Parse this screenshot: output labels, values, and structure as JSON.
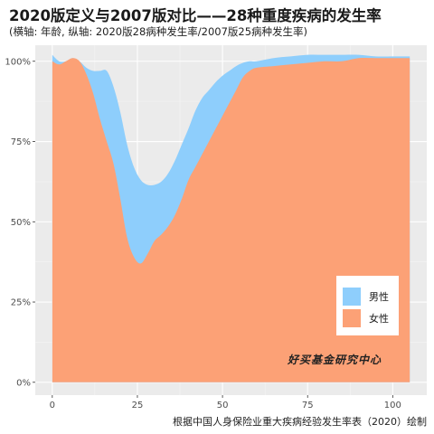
{
  "chart_data": {
    "type": "area",
    "title": "2020版定义与2007版对比——28种重度疾病的发生率",
    "subtitle": "(横轴: 年龄, 纵轴: 2020版28病种发生率/2007版25病种发生率)",
    "caption": "根据中国人身保险业重大疾病经验发生率表（2020）绘制",
    "watermark": "好买基金研究中心",
    "xlabel": "",
    "ylabel": "",
    "xlim": [
      -5,
      110
    ],
    "ylim": [
      -0.04,
      1.05
    ],
    "x_ticks": [
      0,
      25,
      50,
      75,
      100
    ],
    "x_tick_labels": [
      "0",
      "25",
      "50",
      "75",
      "100"
    ],
    "y_ticks": [
      0,
      0.25,
      0.5,
      0.75,
      1.0
    ],
    "y_tick_labels": [
      "0%",
      "25%",
      "50%",
      "75%",
      "100%"
    ],
    "grid": true,
    "legend_position": "bottom-right",
    "series": [
      {
        "name": "男性",
        "color": "#8ecefc",
        "x": [
          0,
          2,
          4,
          6,
          8,
          10,
          12,
          14,
          16,
          18,
          20,
          22,
          24,
          26,
          28,
          30,
          32,
          34,
          36,
          38,
          40,
          42,
          44,
          46,
          48,
          50,
          52,
          54,
          56,
          58,
          60,
          65,
          70,
          75,
          80,
          85,
          90,
          95,
          100,
          105
        ],
        "values": [
          1.02,
          1.0,
          1.0,
          1.01,
          1.0,
          0.98,
          0.97,
          0.97,
          0.97,
          0.92,
          0.84,
          0.74,
          0.67,
          0.63,
          0.615,
          0.615,
          0.625,
          0.65,
          0.69,
          0.74,
          0.79,
          0.845,
          0.885,
          0.91,
          0.935,
          0.955,
          0.97,
          0.985,
          0.995,
          1.0,
          1.0,
          1.01,
          1.015,
          1.02,
          1.02,
          1.02,
          1.02,
          1.015,
          1.015,
          1.015
        ]
      },
      {
        "name": "女性",
        "color": "#fca176",
        "x": [
          0,
          2,
          4,
          6,
          8,
          10,
          12,
          14,
          16,
          18,
          20,
          22,
          24,
          26,
          28,
          30,
          32,
          34,
          36,
          38,
          40,
          42,
          44,
          46,
          48,
          50,
          52,
          54,
          56,
          58,
          60,
          65,
          70,
          75,
          80,
          85,
          90,
          95,
          100,
          105
        ],
        "values": [
          1.0,
          0.99,
          1.0,
          1.01,
          1.0,
          0.96,
          0.9,
          0.82,
          0.75,
          0.68,
          0.57,
          0.45,
          0.39,
          0.37,
          0.4,
          0.44,
          0.46,
          0.485,
          0.52,
          0.57,
          0.63,
          0.67,
          0.71,
          0.75,
          0.79,
          0.83,
          0.87,
          0.91,
          0.95,
          0.97,
          0.98,
          0.985,
          0.99,
          0.995,
          1.0,
          1.0,
          1.01,
          1.01,
          1.01,
          1.01
        ]
      }
    ]
  }
}
